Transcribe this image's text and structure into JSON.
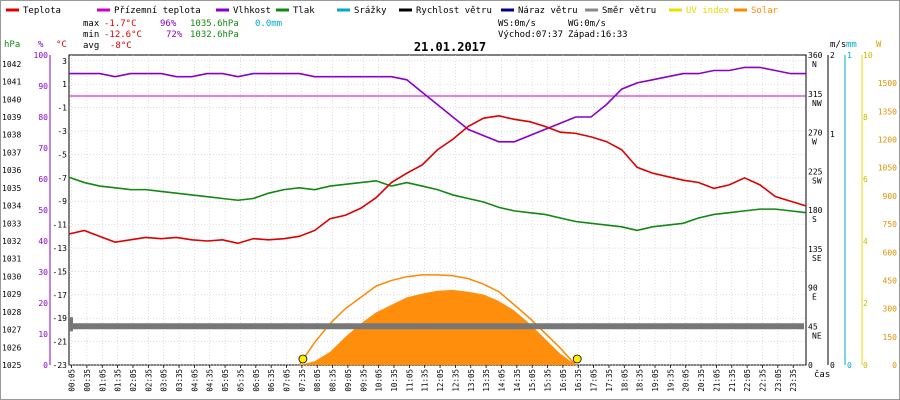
{
  "chart_data": {
    "type": "line",
    "title": "21.01.2017",
    "legend": [
      {
        "name": "Teplota",
        "color": "#dd0000"
      },
      {
        "name": "Přízemní teplota",
        "color": "#cc00cc"
      },
      {
        "name": "Vlhkost",
        "color": "#8800cc"
      },
      {
        "name": "Tlak",
        "color": "#118811"
      },
      {
        "name": "Srážky",
        "color": "#00aacc"
      },
      {
        "name": "Rychlost větru",
        "color": "#000000"
      },
      {
        "name": "Náraz větru",
        "color": "#000088"
      },
      {
        "name": "Směr větru",
        "color": "#888888"
      },
      {
        "name": "UV index",
        "color": "#eedd00"
      },
      {
        "name": "Solar",
        "color": "#ff8800"
      }
    ],
    "stats": {
      "max": {
        "label": "max",
        "temp": "-1.7°C",
        "hum": "96%",
        "press": "1035.6hPa",
        "rain": "0.0mm"
      },
      "min": {
        "label": "min",
        "temp": "-12.6°C",
        "hum": "72%",
        "press": "1032.6hPa"
      },
      "avg": {
        "label": "avg",
        "temp": "-8°C"
      },
      "ws": "WS:0m/s",
      "wg": "WG:0m/s",
      "sunrise": "Východ:07:37",
      "sunset": "Západ:16:33"
    },
    "axis_units": {
      "hpa": "hPa",
      "pct": "%",
      "degc": "°C",
      "ms": "m/s",
      "mm": "mm",
      "w": "W",
      "x": "čas"
    },
    "axis_hpa_ticks": [
      "1042",
      "1041",
      "1040",
      "1039",
      "1038",
      "1037",
      "1036",
      "1035",
      "1034",
      "1033",
      "1032",
      "1031",
      "1030",
      "1029",
      "1028",
      "1027",
      "1026",
      "1025"
    ],
    "axis_pct_ticks": [
      "100",
      "90",
      "80",
      "70",
      "60",
      "50",
      "40",
      "30",
      "20",
      "10",
      "0"
    ],
    "axis_temp_ticks": [
      "3",
      "1",
      "-1",
      "-3",
      "-5",
      "-7",
      "-9",
      "-11",
      "-13",
      "-15",
      "-17",
      "-19",
      "-21",
      "-23"
    ],
    "axis_dir_ticks": [
      {
        "deg": "360",
        "label": "N"
      },
      {
        "deg": "315",
        "label": "NW"
      },
      {
        "deg": "270",
        "label": "W"
      },
      {
        "deg": "225",
        "label": "SW"
      },
      {
        "deg": "180",
        "label": "S"
      },
      {
        "deg": "135",
        "label": "SE"
      },
      {
        "deg": "90",
        "label": "E"
      },
      {
        "deg": "45",
        "label": "NE"
      },
      {
        "deg": "0",
        "label": ""
      }
    ],
    "axis_ms_ticks": [
      "2",
      "1",
      "0"
    ],
    "axis_mm_ticks": [
      "1",
      "0"
    ],
    "axis_w_ticks": [
      "10",
      "8",
      "6",
      "4",
      "2",
      "0"
    ],
    "axis_solar_ticks": [
      "1500",
      "1350",
      "1200",
      "1050",
      "900",
      "750",
      "600",
      "450",
      "300",
      "150",
      "0"
    ],
    "x_ticks": [
      "00:05",
      "00:35",
      "01:05",
      "01:35",
      "02:05",
      "02:35",
      "03:05",
      "03:35",
      "04:05",
      "04:35",
      "05:05",
      "05:35",
      "06:05",
      "06:35",
      "07:05",
      "07:35",
      "08:05",
      "08:35",
      "09:05",
      "09:35",
      "10:05",
      "10:35",
      "11:05",
      "11:35",
      "12:05",
      "12:35",
      "13:05",
      "13:35",
      "14:05",
      "14:35",
      "15:05",
      "15:35",
      "16:05",
      "16:35",
      "17:05",
      "17:35",
      "18:05",
      "18:35",
      "19:05",
      "19:35",
      "20:05",
      "20:35",
      "21:05",
      "21:35",
      "22:05",
      "22:35",
      "23:05",
      "23:35"
    ],
    "series": [
      {
        "name": "Teplota",
        "unit": "°C",
        "x_hours": [
          0,
          0.5,
          1,
          1.5,
          2,
          2.5,
          3,
          3.5,
          4,
          4.5,
          5,
          5.5,
          6,
          6.5,
          7,
          7.5,
          8,
          8.5,
          9,
          9.5,
          10,
          10.5,
          11,
          11.5,
          12,
          12.5,
          13,
          13.5,
          14,
          14.5,
          15,
          15.5,
          16,
          16.5,
          17,
          17.5,
          18,
          18.5,
          19,
          19.5,
          20,
          20.5,
          21,
          21.5,
          22,
          22.5,
          23,
          23.5,
          24
        ],
        "values": [
          -11.8,
          -11.5,
          -12.0,
          -12.5,
          -12.3,
          -12.1,
          -12.2,
          -12.1,
          -12.3,
          -12.4,
          -12.3,
          -12.6,
          -12.2,
          -12.3,
          -12.2,
          -12.0,
          -11.5,
          -10.5,
          -10.2,
          -9.6,
          -8.7,
          -7.4,
          -6.6,
          -5.9,
          -4.6,
          -3.7,
          -2.6,
          -1.9,
          -1.7,
          -2.0,
          -2.2,
          -2.6,
          -3.1,
          -3.2,
          -3.5,
          -3.9,
          -4.6,
          -6.1,
          -6.6,
          -6.9,
          -7.2,
          -7.4,
          -7.9,
          -7.6,
          -7.0,
          -7.6,
          -8.6,
          -9.0,
          -9.4
        ]
      },
      {
        "name": "Přízemní teplota",
        "unit": "°C",
        "x_hours": [
          0,
          24
        ],
        "values": [
          0,
          0
        ]
      },
      {
        "name": "Vlhkost",
        "unit": "%",
        "x_hours": [
          0,
          0.5,
          1,
          1.5,
          2,
          2.5,
          3,
          3.5,
          4,
          4.5,
          5,
          5.5,
          6,
          6.5,
          7,
          7.5,
          8,
          8.5,
          9,
          9.5,
          10,
          10.5,
          11,
          11.5,
          12,
          12.5,
          13,
          13.5,
          14,
          14.5,
          15,
          15.5,
          16,
          16.5,
          17,
          17.5,
          18,
          18.5,
          19,
          19.5,
          20,
          20.5,
          21,
          21.5,
          22,
          22.5,
          23,
          23.5,
          24
        ],
        "values": [
          94,
          94,
          94,
          93,
          94,
          94,
          94,
          93,
          93,
          94,
          94,
          93,
          94,
          94,
          94,
          94,
          93,
          93,
          93,
          93,
          93,
          93,
          92,
          88,
          84,
          80,
          76,
          74,
          72,
          72,
          74,
          76,
          78,
          80,
          80,
          84,
          89,
          91,
          92,
          93,
          94,
          94,
          95,
          95,
          96,
          96,
          95,
          94,
          94
        ]
      },
      {
        "name": "Tlak",
        "unit": "hPa",
        "x_hours": [
          0,
          0.5,
          1,
          1.5,
          2,
          2.5,
          3,
          3.5,
          4,
          4.5,
          5,
          5.5,
          6,
          6.5,
          7,
          7.5,
          8,
          8.5,
          9,
          9.5,
          10,
          10.5,
          11,
          11.5,
          12,
          12.5,
          13,
          13.5,
          14,
          14.5,
          15,
          15.5,
          16,
          16.5,
          17,
          17.5,
          18,
          18.5,
          19,
          19.5,
          20,
          20.5,
          21,
          21.5,
          22,
          22.5,
          23,
          23.5,
          24
        ],
        "values": [
          1035.6,
          1035.3,
          1035.1,
          1035.0,
          1034.9,
          1034.9,
          1034.8,
          1034.7,
          1034.6,
          1034.5,
          1034.4,
          1034.3,
          1034.4,
          1034.7,
          1034.9,
          1035.0,
          1034.9,
          1035.1,
          1035.2,
          1035.3,
          1035.4,
          1035.1,
          1035.3,
          1035.1,
          1034.9,
          1034.6,
          1034.4,
          1034.2,
          1033.9,
          1033.7,
          1033.6,
          1033.5,
          1033.3,
          1033.1,
          1033.0,
          1032.9,
          1032.8,
          1032.6,
          1032.8,
          1032.9,
          1033.0,
          1033.3,
          1033.5,
          1033.6,
          1033.7,
          1033.8,
          1033.8,
          1033.7,
          1033.6
        ]
      },
      {
        "name": "Směr větru",
        "unit": "°",
        "x_hours": [
          0,
          24
        ],
        "values": [
          45,
          45
        ]
      },
      {
        "name": "Solar",
        "unit": "W",
        "x_hours": [
          7.5,
          8,
          8.5,
          9,
          9.5,
          10,
          10.5,
          11,
          11.5,
          12,
          12.5,
          13,
          13.5,
          14,
          14.5,
          15,
          15.5,
          16,
          16.5
        ],
        "values": [
          0,
          20,
          70,
          150,
          220,
          280,
          320,
          360,
          380,
          395,
          400,
          390,
          375,
          340,
          290,
          220,
          140,
          60,
          0
        ]
      },
      {
        "name": "Solar (max)",
        "unit": "W",
        "x_hours": [
          7.5,
          8,
          8.5,
          9,
          9.5,
          10,
          10.5,
          11,
          11.5,
          12,
          12.5,
          13,
          13.5,
          14,
          14.5,
          15,
          15.5,
          16,
          16.5
        ],
        "values": [
          0,
          120,
          220,
          300,
          360,
          420,
          450,
          470,
          480,
          480,
          475,
          460,
          430,
          390,
          320,
          250,
          170,
          90,
          0
        ]
      }
    ],
    "x_range_hours": [
      0,
      24
    ],
    "temp_range": [
      -23,
      3.5
    ],
    "hpa_range": [
      1025,
      1042.5
    ],
    "pct_range": [
      0,
      100
    ],
    "solar_range": [
      0,
      1650
    ],
    "dir_range": [
      0,
      360
    ],
    "grid": true
  }
}
